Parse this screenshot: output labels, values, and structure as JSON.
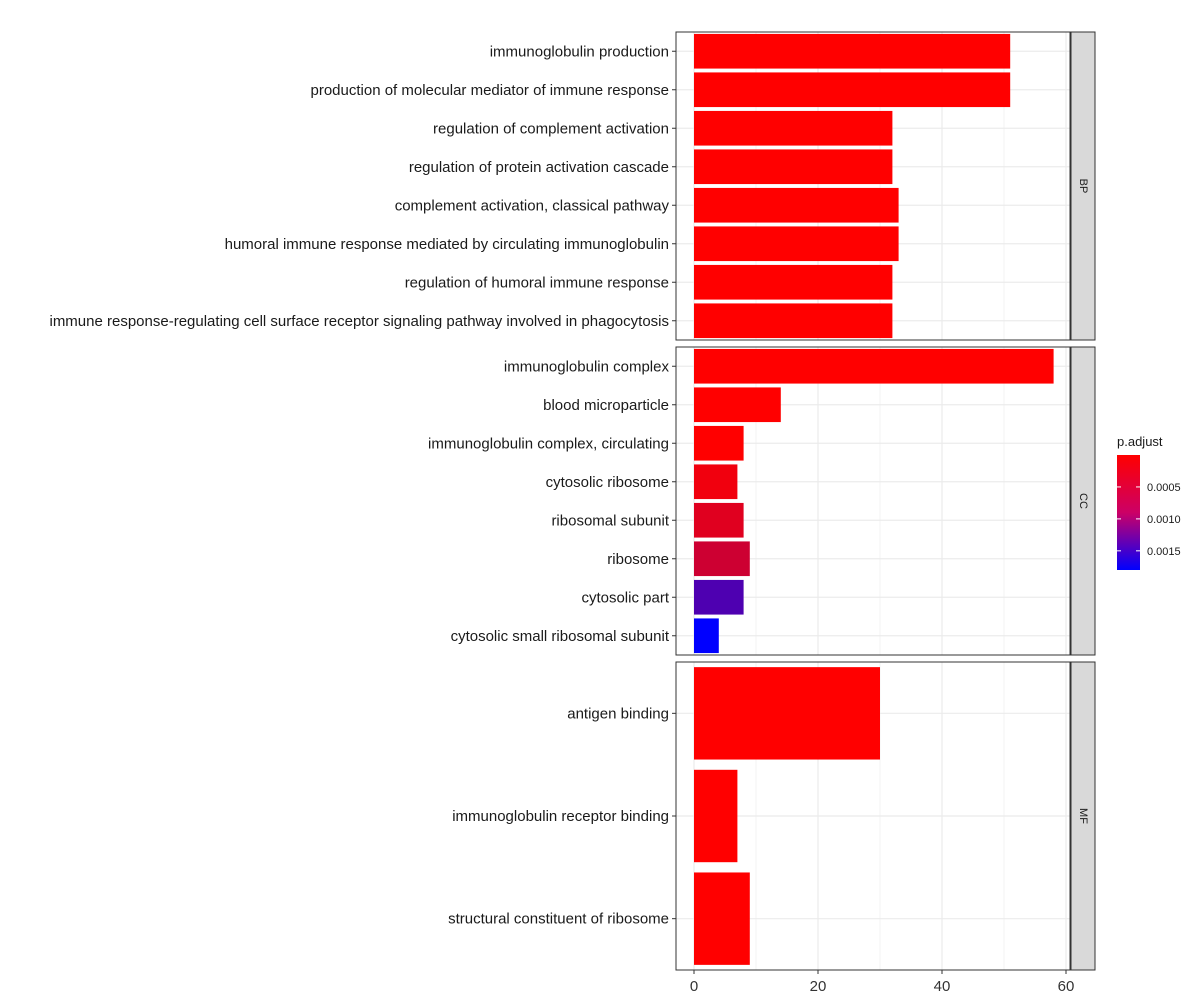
{
  "chart_data": {
    "type": "bar",
    "orientation": "horizontal",
    "xlim": [
      0,
      61
    ],
    "x_ticks": [
      0,
      20,
      40,
      60
    ],
    "grid": true,
    "color_scale": {
      "name": "p.adjust",
      "low_color": "#ff0000",
      "high_color": "#0000ff",
      "range": [
        0.0,
        0.0018
      ]
    },
    "legend": {
      "title": "p.adjust",
      "position": "right",
      "ticks": [
        {
          "value": 0.0005,
          "label": "0.0005"
        },
        {
          "value": 0.001,
          "label": "0.0010"
        },
        {
          "value": 0.0015,
          "label": "0.0015"
        }
      ]
    },
    "panels": [
      {
        "strip": "BP",
        "categories": [
          {
            "label": "immunoglobulin production",
            "value": 51,
            "p_adjust": 0.0
          },
          {
            "label": "production of molecular mediator of immune response",
            "value": 51,
            "p_adjust": 0.0
          },
          {
            "label": "regulation of complement activation",
            "value": 32,
            "p_adjust": 0.0
          },
          {
            "label": "regulation of protein activation cascade",
            "value": 32,
            "p_adjust": 0.0
          },
          {
            "label": "complement activation, classical pathway",
            "value": 33,
            "p_adjust": 0.0
          },
          {
            "label": "humoral immune response mediated by circulating immunoglobulin",
            "value": 33,
            "p_adjust": 0.0
          },
          {
            "label": "regulation of humoral immune response",
            "value": 32,
            "p_adjust": 0.0
          },
          {
            "label": "immune response-regulating cell surface receptor signaling pathway involved in phagocytosis",
            "value": 32,
            "p_adjust": 0.0
          }
        ]
      },
      {
        "strip": "CC",
        "categories": [
          {
            "label": "immunoglobulin complex",
            "value": 58,
            "p_adjust": 0.0
          },
          {
            "label": "blood microparticle",
            "value": 14,
            "p_adjust": 0.0
          },
          {
            "label": "immunoglobulin complex, circulating",
            "value": 8,
            "p_adjust": 0.0
          },
          {
            "label": "cytosolic ribosome",
            "value": 7,
            "p_adjust": 0.0001
          },
          {
            "label": "ribosomal subunit",
            "value": 8,
            "p_adjust": 0.00022
          },
          {
            "label": "ribosome",
            "value": 9,
            "p_adjust": 0.00035
          },
          {
            "label": "cytosolic part",
            "value": 8,
            "p_adjust": 0.00125
          },
          {
            "label": "cytosolic small ribosomal subunit",
            "value": 4,
            "p_adjust": 0.0018
          }
        ]
      },
      {
        "strip": "MF",
        "categories": [
          {
            "label": "antigen binding",
            "value": 30,
            "p_adjust": 0.0
          },
          {
            "label": "immunoglobulin receptor binding",
            "value": 7,
            "p_adjust": 0.0
          },
          {
            "label": "structural constituent of ribosome",
            "value": 9,
            "p_adjust": 0.0
          }
        ]
      }
    ]
  }
}
